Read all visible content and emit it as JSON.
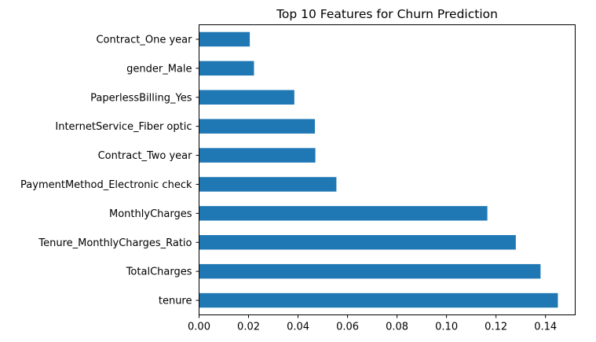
{
  "chart_data": {
    "type": "bar",
    "orientation": "horizontal",
    "title": "Top 10 Features for Churn Prediction",
    "xlabel": "",
    "ylabel": "",
    "categories": [
      "tenure",
      "TotalCharges",
      "Tenure_MonthlyCharges_Ratio",
      "MonthlyCharges",
      "PaymentMethod_Electronic check",
      "Contract_Two year",
      "InternetService_Fiber optic",
      "PaperlessBilling_Yes",
      "gender_Male",
      "Contract_One year"
    ],
    "values": [
      0.145,
      0.138,
      0.128,
      0.1165,
      0.0555,
      0.047,
      0.0468,
      0.0385,
      0.0222,
      0.0205
    ],
    "xlim": [
      0,
      0.152
    ],
    "xticks": [
      0.0,
      0.02,
      0.04,
      0.06,
      0.08,
      0.1,
      0.12,
      0.14
    ],
    "xtick_labels": [
      "0.00",
      "0.02",
      "0.04",
      "0.06",
      "0.08",
      "0.10",
      "0.12",
      "0.14"
    ],
    "grid": false,
    "legend": "none",
    "bar_color": "#1f77b4"
  }
}
